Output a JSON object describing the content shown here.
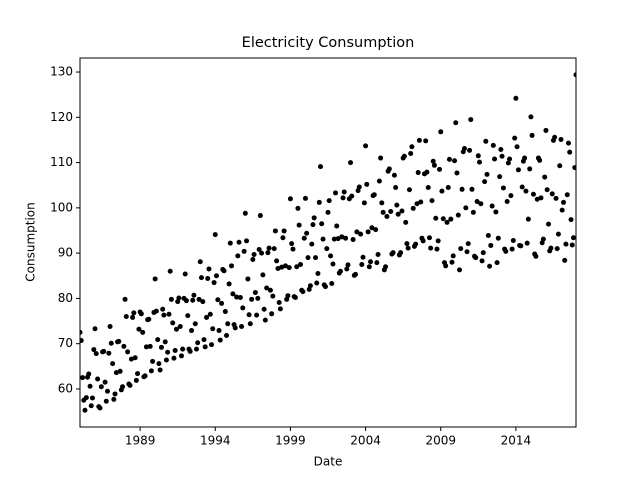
{
  "chart_data": {
    "type": "scatter",
    "title": "Electricity Consumption",
    "xlabel": "Date",
    "ylabel": "Consumption",
    "color": "#000000",
    "xlim": [
      1985,
      2018.0
    ],
    "ylim": [
      51.6,
      133.1
    ],
    "xticks": [
      1989,
      1994,
      1999,
      2004,
      2009,
      2014
    ],
    "yticks": [
      60,
      70,
      80,
      90,
      100,
      110,
      120,
      130
    ],
    "x": [
      1985,
      1985.08,
      1985.17,
      1985.25,
      1985.33,
      1985.42,
      1985.5,
      1985.58,
      1985.67,
      1985.75,
      1985.83,
      1985.92,
      1986,
      1986.08,
      1986.17,
      1986.25,
      1986.33,
      1986.42,
      1986.5,
      1986.58,
      1986.67,
      1986.75,
      1986.83,
      1986.92,
      1987,
      1987.08,
      1987.17,
      1987.25,
      1987.33,
      1987.42,
      1987.5,
      1987.58,
      1987.67,
      1987.75,
      1987.83,
      1987.92,
      1988,
      1988.08,
      1988.17,
      1988.25,
      1988.33,
      1988.42,
      1988.5,
      1988.58,
      1988.67,
      1988.75,
      1988.83,
      1988.92,
      1989,
      1989.08,
      1989.17,
      1989.25,
      1989.33,
      1989.42,
      1989.5,
      1989.58,
      1989.67,
      1989.75,
      1989.83,
      1989.92,
      1990,
      1990.08,
      1990.17,
      1990.25,
      1990.33,
      1990.42,
      1990.5,
      1990.58,
      1990.67,
      1990.75,
      1990.83,
      1990.92,
      1991,
      1991.08,
      1991.17,
      1991.25,
      1991.33,
      1991.42,
      1991.5,
      1991.58,
      1991.67,
      1991.75,
      1991.83,
      1991.92,
      1992,
      1992.08,
      1992.17,
      1992.25,
      1992.33,
      1992.42,
      1992.5,
      1992.58,
      1992.67,
      1992.75,
      1992.83,
      1992.92,
      1993,
      1993.08,
      1993.17,
      1993.25,
      1993.33,
      1993.42,
      1993.5,
      1993.58,
      1993.67,
      1993.75,
      1993.83,
      1993.92,
      1994,
      1994.08,
      1994.17,
      1994.25,
      1994.33,
      1994.42,
      1994.5,
      1994.58,
      1994.67,
      1994.75,
      1994.83,
      1994.92,
      1995,
      1995.08,
      1995.17,
      1995.25,
      1995.33,
      1995.42,
      1995.5,
      1995.58,
      1995.67,
      1995.75,
      1995.83,
      1995.92,
      1996,
      1996.08,
      1996.17,
      1996.25,
      1996.33,
      1996.42,
      1996.5,
      1996.58,
      1996.67,
      1996.75,
      1996.83,
      1996.92,
      1997,
      1997.08,
      1997.17,
      1997.25,
      1997.33,
      1997.42,
      1997.5,
      1997.58,
      1997.67,
      1997.75,
      1997.83,
      1997.92,
      1998,
      1998.08,
      1998.17,
      1998.25,
      1998.33,
      1998.42,
      1998.5,
      1998.58,
      1998.67,
      1998.75,
      1998.83,
      1998.92,
      1999,
      1999.08,
      1999.17,
      1999.25,
      1999.33,
      1999.42,
      1999.5,
      1999.58,
      1999.67,
      1999.75,
      1999.83,
      1999.92,
      2000,
      2000.08,
      2000.17,
      2000.25,
      2000.33,
      2000.42,
      2000.5,
      2000.58,
      2000.67,
      2000.75,
      2000.83,
      2000.92,
      2001,
      2001.08,
      2001.17,
      2001.25,
      2001.33,
      2001.42,
      2001.5,
      2001.58,
      2001.67,
      2001.75,
      2001.83,
      2001.92,
      2002,
      2002.08,
      2002.17,
      2002.25,
      2002.33,
      2002.42,
      2002.5,
      2002.58,
      2002.67,
      2002.75,
      2002.83,
      2002.92,
      2003,
      2003.08,
      2003.17,
      2003.25,
      2003.33,
      2003.42,
      2003.5,
      2003.58,
      2003.67,
      2003.75,
      2003.83,
      2003.92,
      2004,
      2004.08,
      2004.17,
      2004.25,
      2004.33,
      2004.42,
      2004.5,
      2004.58,
      2004.67,
      2004.75,
      2004.83,
      2004.92,
      2005,
      2005.08,
      2005.17,
      2005.25,
      2005.33,
      2005.42,
      2005.5,
      2005.58,
      2005.67,
      2005.75,
      2005.83,
      2005.92,
      2006,
      2006.08,
      2006.17,
      2006.25,
      2006.33,
      2006.42,
      2006.5,
      2006.58,
      2006.67,
      2006.75,
      2006.83,
      2006.92,
      2007,
      2007.08,
      2007.17,
      2007.25,
      2007.33,
      2007.42,
      2007.5,
      2007.58,
      2007.67,
      2007.75,
      2007.83,
      2007.92,
      2008,
      2008.08,
      2008.17,
      2008.25,
      2008.33,
      2008.42,
      2008.5,
      2008.58,
      2008.67,
      2008.75,
      2008.83,
      2008.92,
      2009,
      2009.08,
      2009.17,
      2009.25,
      2009.33,
      2009.42,
      2009.5,
      2009.58,
      2009.67,
      2009.75,
      2009.83,
      2009.92,
      2010,
      2010.08,
      2010.17,
      2010.25,
      2010.33,
      2010.42,
      2010.5,
      2010.58,
      2010.67,
      2010.75,
      2010.83,
      2010.92,
      2011,
      2011.08,
      2011.17,
      2011.25,
      2011.33,
      2011.42,
      2011.5,
      2011.58,
      2011.67,
      2011.75,
      2011.83,
      2011.92,
      2012,
      2012.08,
      2012.17,
      2012.25,
      2012.33,
      2012.42,
      2012.5,
      2012.58,
      2012.67,
      2012.75,
      2012.83,
      2012.92,
      2013,
      2013.08,
      2013.17,
      2013.25,
      2013.33,
      2013.42,
      2013.5,
      2013.58,
      2013.67,
      2013.75,
      2013.83,
      2013.92,
      2014,
      2014.08,
      2014.17,
      2014.25,
      2014.33,
      2014.42,
      2014.5,
      2014.58,
      2014.67,
      2014.75,
      2014.83,
      2014.92,
      2015,
      2015.08,
      2015.17,
      2015.25,
      2015.33,
      2015.42,
      2015.5,
      2015.58,
      2015.67,
      2015.75,
      2015.83,
      2015.92,
      2016,
      2016.08,
      2016.17,
      2016.25,
      2016.33,
      2016.42,
      2016.5,
      2016.58,
      2016.67,
      2016.75,
      2016.83,
      2016.92,
      2017,
      2017.08,
      2017.17,
      2017.25,
      2017.33,
      2017.42,
      2017.5,
      2017.58,
      2017.67,
      2017.75,
      2017.83,
      2017.92,
      2018
    ],
    "values": [
      72.5,
      70.7,
      62.5,
      57.5,
      55.3,
      58.1,
      62.6,
      63.3,
      60.6,
      56.3,
      58.0,
      68.7,
      73.3,
      67.8,
      62.2,
      56.1,
      55.8,
      60.5,
      68.2,
      68.3,
      61.5,
      57.3,
      59.5,
      67.9,
      73.8,
      70.1,
      65.6,
      57.7,
      58.9,
      63.6,
      70.4,
      70.5,
      63.9,
      59.8,
      60.5,
      69.4,
      79.8,
      76.0,
      68.2,
      61.1,
      60.8,
      66.6,
      75.8,
      76.8,
      66.9,
      61.9,
      63.4,
      73.2,
      77.0,
      76.6,
      72.5,
      62.7,
      62.9,
      69.3,
      75.3,
      75.4,
      69.4,
      64.0,
      66.1,
      76.9,
      84.3,
      77.2,
      70.9,
      65.6,
      64.2,
      69.2,
      77.6,
      76.3,
      70.4,
      66.4,
      68.1,
      76.5,
      86.0,
      79.8,
      74.6,
      66.8,
      68.5,
      73.2,
      79.3,
      80.1,
      73.8,
      67.3,
      68.8,
      80.0,
      85.4,
      79.5,
      76.2,
      68.8,
      68.3,
      72.9,
      79.6,
      80.7,
      74.4,
      68.8,
      70.2,
      79.8,
      88.1,
      84.6,
      79.3,
      70.9,
      69.3,
      75.8,
      84.4,
      86.5,
      76.5,
      69.8,
      73.3,
      83.5,
      94.1,
      85.0,
      79.7,
      72.9,
      70.8,
      78.9,
      86.4,
      86.1,
      77.1,
      71.8,
      74.4,
      83.2,
      92.2,
      87.2,
      81.0,
      74.2,
      73.5,
      80.3,
      89.4,
      92.4,
      80.2,
      73.8,
      77.9,
      90.4,
      98.8,
      92.7,
      84.3,
      76.4,
      74.4,
      79.8,
      88.6,
      89.7,
      81.3,
      76.3,
      80.0,
      90.8,
      98.3,
      90.0,
      85.2,
      77.6,
      75.2,
      82.3,
      90.1,
      91.1,
      81.8,
      76.6,
      80.5,
      91.0,
      94.9,
      88.3,
      86.6,
      79.1,
      77.7,
      86.9,
      93.4,
      94.9,
      87.2,
      79.8,
      80.6,
      86.8,
      102.0,
      92.1,
      90.9,
      80.4,
      80.2,
      87.0,
      99.9,
      96.2,
      87.5,
      81.8,
      81.5,
      93.3,
      102.1,
      94.4,
      89.0,
      82.0,
      82.8,
      92.0,
      96.3,
      97.8,
      89.0,
      83.4,
      85.5,
      101.2,
      109.1,
      96.5,
      93.1,
      83.0,
      82.6,
      91.0,
      99.0,
      101.6,
      89.4,
      83.3,
      87.6,
      93.1,
      103.3,
      96.0,
      93.2,
      85.6,
      86.0,
      93.6,
      102.2,
      103.5,
      93.3,
      86.5,
      87.4,
      102.0,
      110.0,
      102.6,
      93.0,
      85.1,
      85.3,
      94.7,
      103.8,
      104.6,
      94.2,
      87.5,
      89.1,
      101.1,
      113.7,
      105.2,
      94.7,
      87.0,
      88.1,
      95.6,
      102.7,
      102.9,
      95.2,
      87.9,
      89.7,
      105.9,
      111.0,
      101.1,
      99.0,
      86.3,
      87.0,
      98.1,
      108.1,
      108.6,
      99.2,
      89.8,
      90.1,
      107.2,
      104.5,
      100.6,
      98.6,
      89.6,
      90.1,
      99.3,
      111.0,
      111.4,
      96.8,
      92.1,
      91.1,
      104.0,
      112.0,
      113.5,
      99.9,
      91.5,
      92.0,
      100.9,
      107.8,
      114.9,
      101.3,
      93.3,
      92.7,
      107.5,
      114.8,
      107.9,
      104.5,
      93.4,
      91.1,
      101.6,
      110.3,
      109.4,
      97.7,
      90.9,
      92.7,
      108.5,
      116.8,
      103.7,
      97.6,
      87.9,
      87.2,
      96.8,
      104.5,
      110.7,
      97.5,
      88.0,
      89.4,
      110.4,
      118.8,
      107.7,
      98.4,
      86.3,
      91.0,
      104.1,
      112.4,
      113.1,
      100.0,
      90.3,
      92.1,
      112.7,
      119.5,
      104.1,
      99.0,
      89.3,
      89.0,
      101.4,
      111.5,
      110.1,
      100.9,
      88.3,
      90.1,
      105.8,
      114.7,
      107.4,
      93.9,
      87.1,
      91.7,
      100.4,
      113.8,
      110.8,
      99.1,
      87.9,
      93.3,
      106.9,
      112.9,
      111.4,
      104.4,
      90.9,
      90.4,
      101.4,
      109.9,
      110.8,
      102.7,
      90.9,
      92.8,
      115.4,
      124.2,
      113.5,
      108.4,
      91.7,
      91.6,
      104.6,
      110.3,
      111.0,
      103.7,
      92.2,
      97.5,
      108.6,
      120.1,
      116.0,
      103.0,
      89.8,
      89.3,
      101.9,
      111.0,
      110.5,
      102.2,
      92.3,
      93.1,
      106.8,
      117.1,
      104.0,
      96.4,
      90.5,
      91.1,
      103.1,
      114.9,
      115.6,
      102.1,
      91.0,
      94.2,
      109.3,
      115.1,
      99.5,
      101.2,
      88.4,
      92.0,
      102.9,
      114.3,
      112.3,
      97.4,
      91.8,
      93.4,
      108.9,
      129.4
    ]
  }
}
